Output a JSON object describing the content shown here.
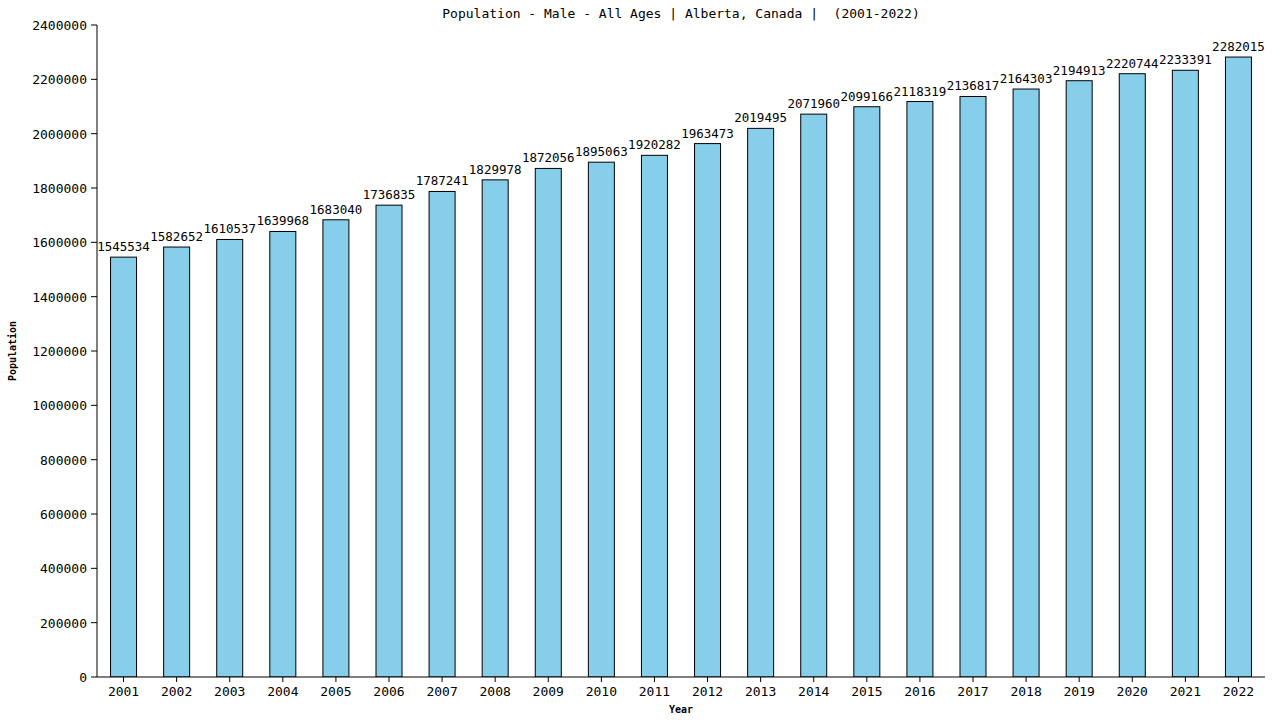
{
  "chart_data": {
    "type": "bar",
    "title": "Population - Male - All Ages | Alberta, Canada |  (2001-2022)",
    "x_label": "Year",
    "y_label": "Population",
    "categories": [
      "2001",
      "2002",
      "2003",
      "2004",
      "2005",
      "2006",
      "2007",
      "2008",
      "2009",
      "2010",
      "2011",
      "2012",
      "2013",
      "2014",
      "2015",
      "2016",
      "2017",
      "2018",
      "2019",
      "2020",
      "2021",
      "2022"
    ],
    "values": [
      1545534,
      1582652,
      1610537,
      1639968,
      1683040,
      1736835,
      1787241,
      1829978,
      1872056,
      1895063,
      1920282,
      1963473,
      2019495,
      2071960,
      2099166,
      2118319,
      2136817,
      2164303,
      2194913,
      2220744,
      2233391,
      2282015
    ],
    "color": "#87ceeb",
    "ylim": [
      0,
      2400000
    ],
    "yticks": [
      0,
      200000,
      400000,
      600000,
      800000,
      1000000,
      1200000,
      1400000,
      1600000,
      1800000,
      2000000,
      2200000,
      2400000
    ],
    "grid": false,
    "data_labels": true
  }
}
